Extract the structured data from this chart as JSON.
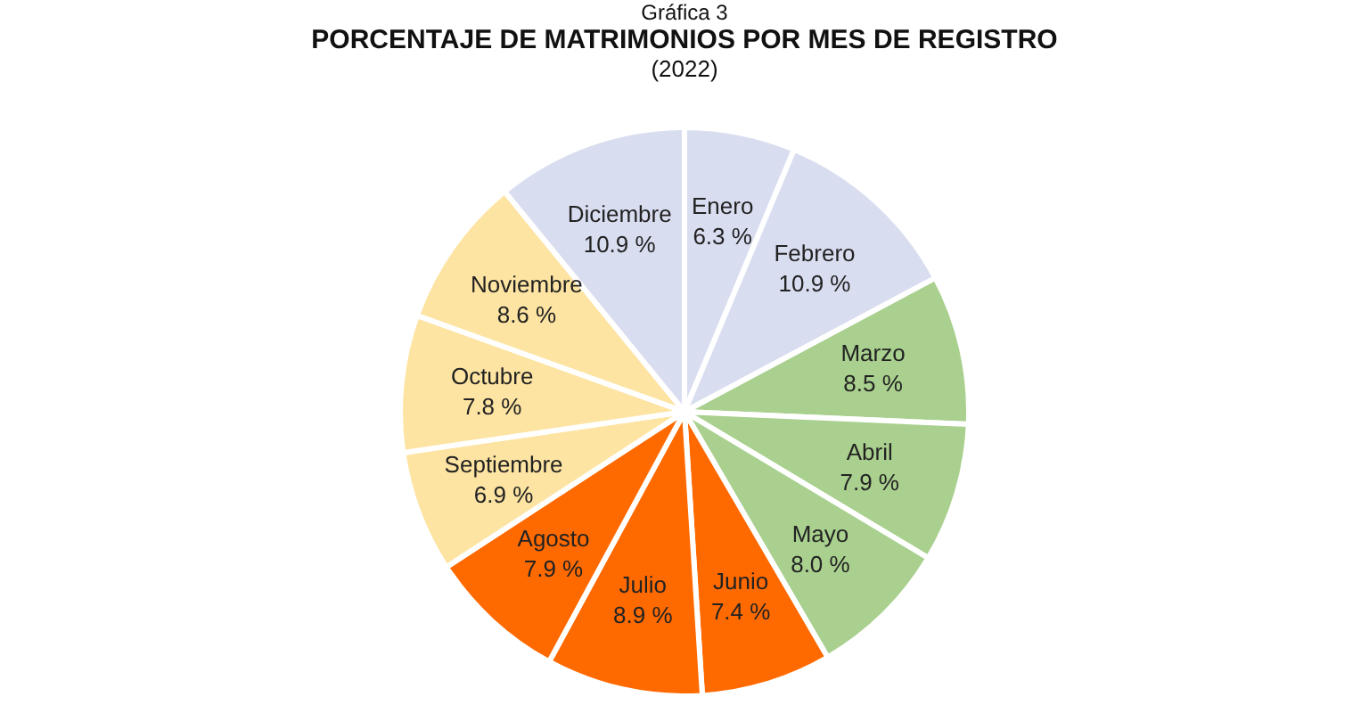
{
  "chart_data": {
    "type": "pie",
    "title": "PORCENTAJE DE MATRIMONIOS POR MES DE REGISTRO",
    "subtitle": "(2022)",
    "annotations": [
      "Gráfica 3"
    ],
    "categories": [
      "Enero",
      "Febrero",
      "Marzo",
      "Abril",
      "Mayo",
      "Junio",
      "Julio",
      "Agosto",
      "Septiembre",
      "Octubre",
      "Noviembre",
      "Diciembre"
    ],
    "values": [
      6.3,
      10.9,
      8.5,
      7.9,
      8.0,
      7.4,
      8.9,
      7.9,
      6.9,
      7.8,
      8.6,
      10.9
    ],
    "value_labels": [
      "6.3 %",
      "10.9 %",
      "8.5 %",
      "7.9 %",
      "8.0 %",
      "7.4 %",
      "8.9 %",
      "7.9 %",
      "6.9 %",
      "7.8 %",
      "8.6 %",
      "10.9 %"
    ],
    "colors": [
      "#d9ddf0",
      "#d9ddf0",
      "#a9d08e",
      "#a9d08e",
      "#a9d08e",
      "#ff6a00",
      "#ff6a00",
      "#ff6a00",
      "#fde4a2",
      "#fde4a2",
      "#fde4a2",
      "#d9ddf0"
    ],
    "legend": false
  }
}
